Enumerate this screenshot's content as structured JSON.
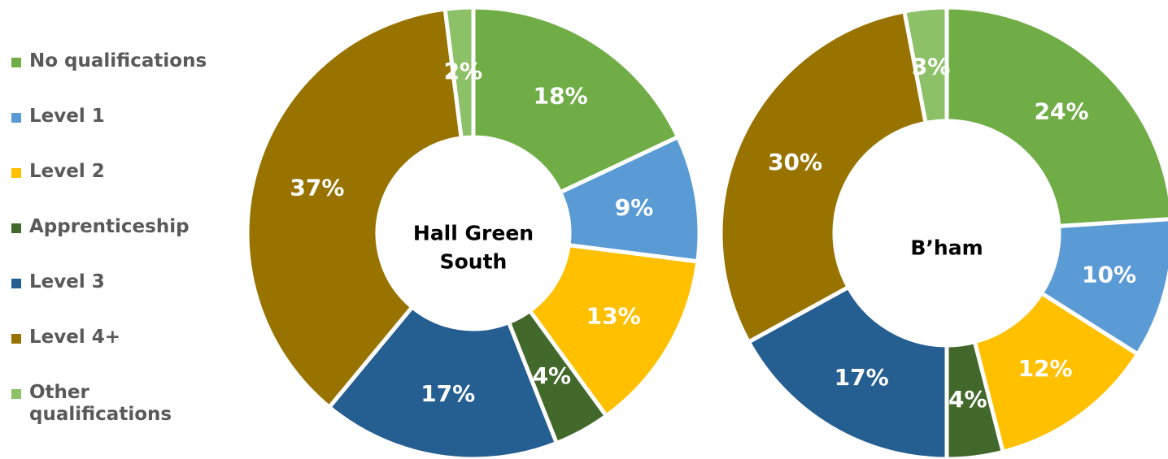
{
  "legend": [
    {
      "label": "No qualifications",
      "color": "#70ad47"
    },
    {
      "label": "Level 1",
      "color": "#5b9bd5"
    },
    {
      "label": "Level 2",
      "color": "#ffc000"
    },
    {
      "label": "Apprenticeship",
      "color": "#43682b"
    },
    {
      "label": "Level 3",
      "color": "#255e91"
    },
    {
      "label": "Level 4+",
      "color": "#997300"
    },
    {
      "label": "Other qualifications",
      "color": "#8cc168"
    }
  ],
  "chart_data": [
    {
      "type": "pie",
      "subtype": "doughnut",
      "center_title": [
        "Hall Green",
        "South"
      ],
      "categories": [
        "No qualifications",
        "Level 1",
        "Level 2",
        "Apprenticeship",
        "Level 3",
        "Level 4+",
        "Other qualifications"
      ],
      "values": [
        18,
        9,
        13,
        4,
        17,
        37,
        2
      ],
      "labels": [
        "18%",
        "9%",
        "13%",
        "4%",
        "17%",
        "37%",
        "2%"
      ],
      "legend_position": "left"
    },
    {
      "type": "pie",
      "subtype": "doughnut",
      "center_title": [
        "B’ham"
      ],
      "categories": [
        "No qualifications",
        "Level 1",
        "Level 2",
        "Apprenticeship",
        "Level 3",
        "Level 4+",
        "Other qualifications"
      ],
      "values": [
        24,
        10,
        12,
        4,
        17,
        30,
        3
      ],
      "labels": [
        "24%",
        "10%",
        "12%",
        "4%",
        "17%",
        "30%",
        "3%"
      ],
      "legend_position": "left"
    }
  ]
}
